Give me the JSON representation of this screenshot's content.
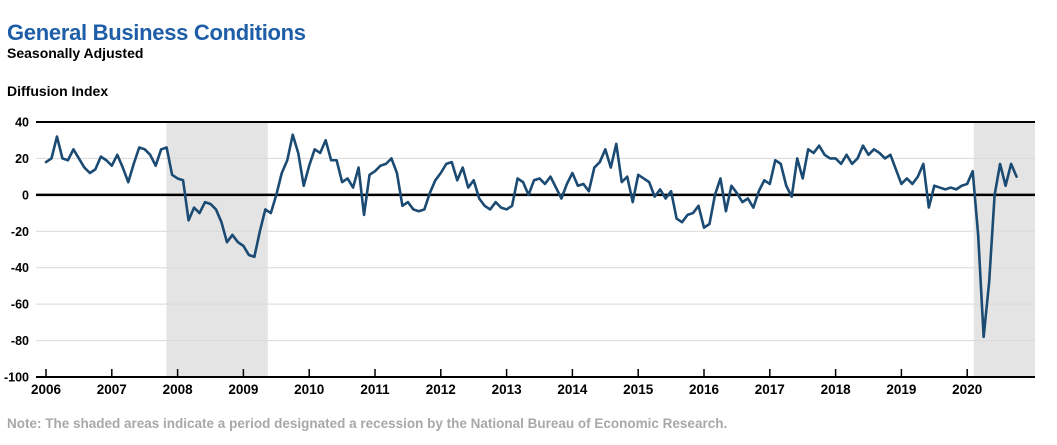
{
  "header": {
    "title": "General Business Conditions",
    "subtitle": "Seasonally Adjusted"
  },
  "axis_label": "Diffusion Index",
  "note": "Note: The shaded areas indicate a period designated a recession by the National Bureau of Economic Research.",
  "colors": {
    "title_blue": "#1e5ea8",
    "line_navy": "#1b4a72",
    "recession_band": "#e4e4e4",
    "gridline": "#d9d9d9",
    "axis_black": "#000000",
    "note_gray": "#a8a8a8"
  },
  "chart_data": {
    "type": "line",
    "title": "General Business Conditions",
    "subtitle": "Seasonally Adjusted",
    "ylabel": "Diffusion Index",
    "frequency": "monthly",
    "start_year": 2006,
    "start_month": 1,
    "end_label": "Oct 2020",
    "ylim": [
      -100,
      40
    ],
    "y_ticks": [
      40,
      20,
      0,
      -20,
      -40,
      -60,
      -80,
      -100
    ],
    "x_ticks": [
      2006,
      2007,
      2008,
      2009,
      2010,
      2011,
      2012,
      2013,
      2014,
      2015,
      2016,
      2017,
      2018,
      2019,
      2020
    ],
    "grid": "horizontal",
    "legend": "none",
    "zero_line": true,
    "recession_bands": [
      {
        "from_year": 2007.83,
        "to_year": 2009.37,
        "label": "2007-09 recession"
      },
      {
        "from_year": 2020.1,
        "to_year": "axis-end",
        "label": "2020 recession"
      }
    ],
    "series": [
      {
        "name": "General Business Conditions (diffusion index, seasonally adjusted)",
        "values": [
          18,
          20,
          32,
          20,
          19,
          25,
          20,
          15,
          12,
          14,
          21,
          19,
          16,
          22,
          15,
          7,
          17,
          26,
          25,
          22,
          16,
          25,
          26,
          11,
          9,
          8,
          -14,
          -7,
          -10,
          -4,
          -5,
          -8,
          -15,
          -26,
          -22,
          -26,
          -28,
          -33,
          -34,
          -20,
          -8,
          -10,
          0,
          12,
          19,
          33,
          23,
          5,
          16,
          25,
          23,
          30,
          19,
          19,
          7,
          9,
          4,
          15,
          -11,
          11,
          13,
          16,
          17,
          20,
          12,
          -6,
          -4,
          -8,
          -9,
          -8,
          1,
          8,
          12,
          17,
          18,
          8,
          15,
          4,
          8,
          -2,
          -6,
          -8,
          -4,
          -7,
          -8,
          -6,
          9,
          7,
          0,
          8,
          9,
          6,
          10,
          4,
          -2,
          6,
          12,
          5,
          6,
          2,
          15,
          18,
          25,
          15,
          28,
          7,
          10,
          -4,
          11,
          9,
          7,
          -1,
          3,
          -2,
          2,
          -13,
          -15,
          -11,
          -10,
          -6,
          -18,
          -16,
          0,
          9,
          -9,
          5,
          1,
          -4,
          -2,
          -7,
          2,
          8,
          6,
          19,
          17,
          5,
          -1,
          20,
          9,
          25,
          23,
          27,
          22,
          20,
          20,
          17,
          22,
          17,
          20,
          27,
          22,
          25,
          23,
          20,
          22,
          14,
          6,
          9,
          6,
          10,
          17,
          -7,
          5,
          4,
          3,
          4,
          3,
          5,
          6,
          13,
          -22,
          -78,
          -48,
          0,
          17,
          5,
          17,
          10
        ]
      }
    ]
  }
}
